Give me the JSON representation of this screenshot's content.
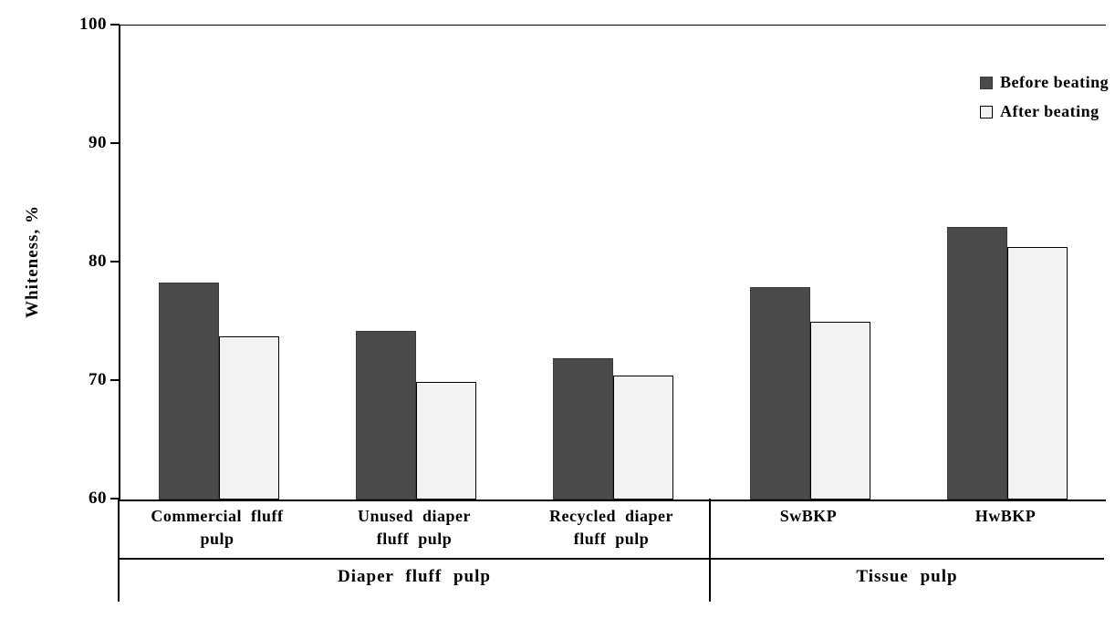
{
  "chart_data": {
    "type": "bar",
    "title": "",
    "xlabel": "",
    "ylabel": "Whiteness, %",
    "ylim": [
      60,
      100
    ],
    "yticks": [
      60,
      70,
      80,
      90,
      100
    ],
    "grid": false,
    "legend_position": "top-right",
    "categories": [
      "Commercial fluff\npulp",
      "Unused diaper\nfluff pulp",
      "Recycled diaper\nfluff pulp",
      "SwBKP",
      "HwBKP"
    ],
    "category_groups": [
      {
        "label": "Diaper fluff pulp",
        "span": 3
      },
      {
        "label": "Tissue pulp",
        "span": 2
      }
    ],
    "series": [
      {
        "name": "Before beating",
        "color": "#4a4a4a",
        "border": "#3a3a3a",
        "values": [
          78.3,
          74.2,
          71.9,
          77.9,
          83.0
        ]
      },
      {
        "name": "After beating",
        "color": "#f2f2f2",
        "border": "#000000",
        "values": [
          73.8,
          69.9,
          70.5,
          75.0,
          81.3
        ]
      }
    ]
  }
}
